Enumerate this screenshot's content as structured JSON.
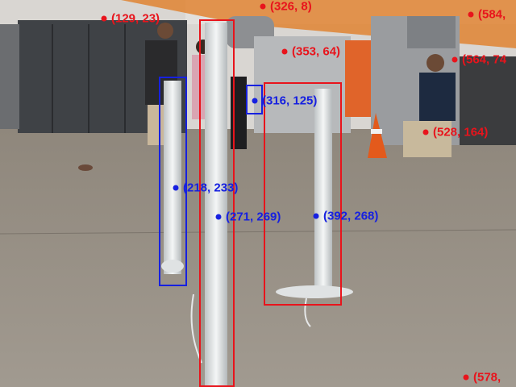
{
  "colors": {
    "red": "#e8141c",
    "blue": "#1620e0"
  },
  "boxes": [
    {
      "id": "box-red-left-pole",
      "color": "red"
    },
    {
      "id": "box-red-right-pole",
      "color": "red"
    },
    {
      "id": "box-blue-back-pole",
      "color": "blue"
    },
    {
      "id": "box-blue-small",
      "color": "blue"
    }
  ],
  "points": [
    {
      "label": "(129, 23)",
      "color": "red"
    },
    {
      "label": "(326, 8)",
      "color": "red"
    },
    {
      "label": "(353, 64)",
      "color": "red"
    },
    {
      "label": "(584,",
      "color": "red"
    },
    {
      "label": "(564, 74",
      "color": "red"
    },
    {
      "label": "(528, 164)",
      "color": "red"
    },
    {
      "label": "(578, ",
      "color": "red"
    },
    {
      "label": "(316, 125)",
      "color": "blue"
    },
    {
      "label": "(218, 233)",
      "color": "blue"
    },
    {
      "label": "(271, 269)",
      "color": "blue"
    },
    {
      "label": "(392, 268)",
      "color": "blue"
    }
  ]
}
